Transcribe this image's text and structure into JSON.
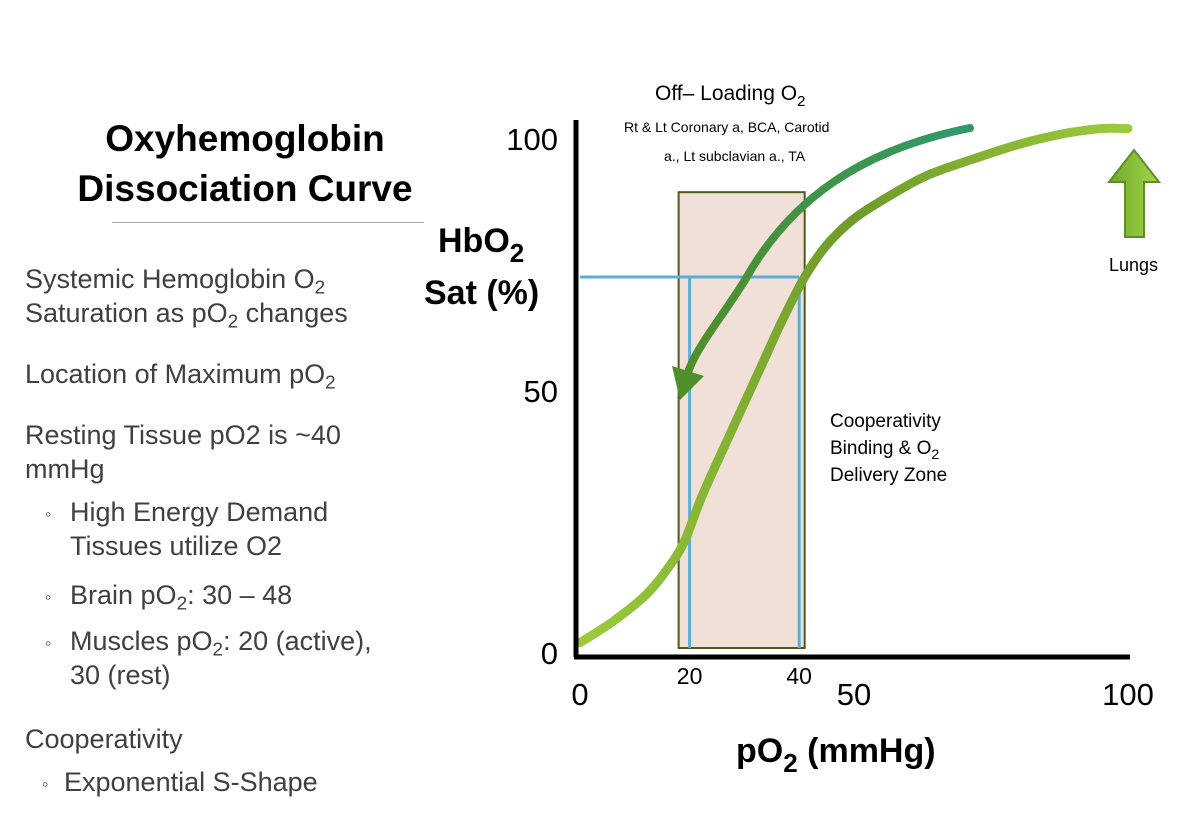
{
  "slide": {
    "title_line1": "Oxyhemoglobin",
    "title_line2": "Dissociation Curve"
  },
  "bullets": {
    "b1_line1": "Systemic Hemoglobin O",
    "b1_line1_sub": "2",
    "b1_line2_a": "Saturation as pO",
    "b1_line2_sub": "2",
    "b1_line2_b": " changes",
    "b2_a": "Location of Maximum pO",
    "b2_sub": "2",
    "b3_line1": "Resting Tissue pO2 is ~40",
    "b3_line2": "mmHg",
    "s1_line1": "High Energy Demand",
    "s1_line2": "Tissues utilize O2",
    "s2_a": "Brain pO",
    "s2_sub": "2",
    "s2_b": ": 30 – 48",
    "s3_a": "Muscles pO",
    "s3_sub": "2",
    "s3_b": ": 20 (active),",
    "s3_line2": "30 (rest)",
    "b4": "Cooperativity",
    "s4": "Exponential S-Shape",
    "sub_marker": "◦"
  },
  "chart_data": {
    "type": "line",
    "title": "",
    "xlabel": "pO",
    "xlabel_sub": "2",
    "xlabel_unit": " (mmHg)",
    "ylabel_line1": "HbO",
    "ylabel_sub": "2",
    "ylabel_line2": "Sat (%)",
    "xlim": [
      0,
      100
    ],
    "ylim": [
      0,
      100
    ],
    "x_ticks": [
      "0",
      "50",
      "100"
    ],
    "y_ticks": [
      "0",
      "50",
      "100"
    ],
    "zone_ticks": [
      "20",
      "40"
    ],
    "zone_x_range": [
      18,
      41
    ],
    "zone_y_range": [
      0,
      86
    ],
    "reference_y": 70,
    "reference_x": [
      20,
      40
    ],
    "series": [
      {
        "name": "HbO2 saturation curve",
        "color": "#92c83e",
        "x": [
          0,
          6,
          12,
          16,
          19,
          22,
          25,
          29,
          33,
          37,
          41,
          45,
          50,
          56,
          63,
          71,
          80,
          88,
          95,
          100
        ],
        "y": [
          1,
          5,
          10,
          15,
          20,
          28,
          35,
          44,
          53,
          62,
          70,
          76,
          81,
          85,
          89,
          92,
          95,
          97,
          98,
          98
        ]
      }
    ],
    "off_loading_arrow": {
      "color": "#2e8b57",
      "label": "Off– Loading O",
      "label_sub": "2",
      "note_line1": "Rt &  Lt Coronary a, BCA, Carotid",
      "note_line2": "a., Lt subclavian a., TA"
    },
    "lungs_arrow": {
      "color": "#8dc63f",
      "label": "Lungs"
    },
    "zone_label": {
      "line1": "Cooperativity",
      "line2": "Binding & O",
      "line2_sub": "2",
      "line3": "Delivery Zone"
    }
  }
}
